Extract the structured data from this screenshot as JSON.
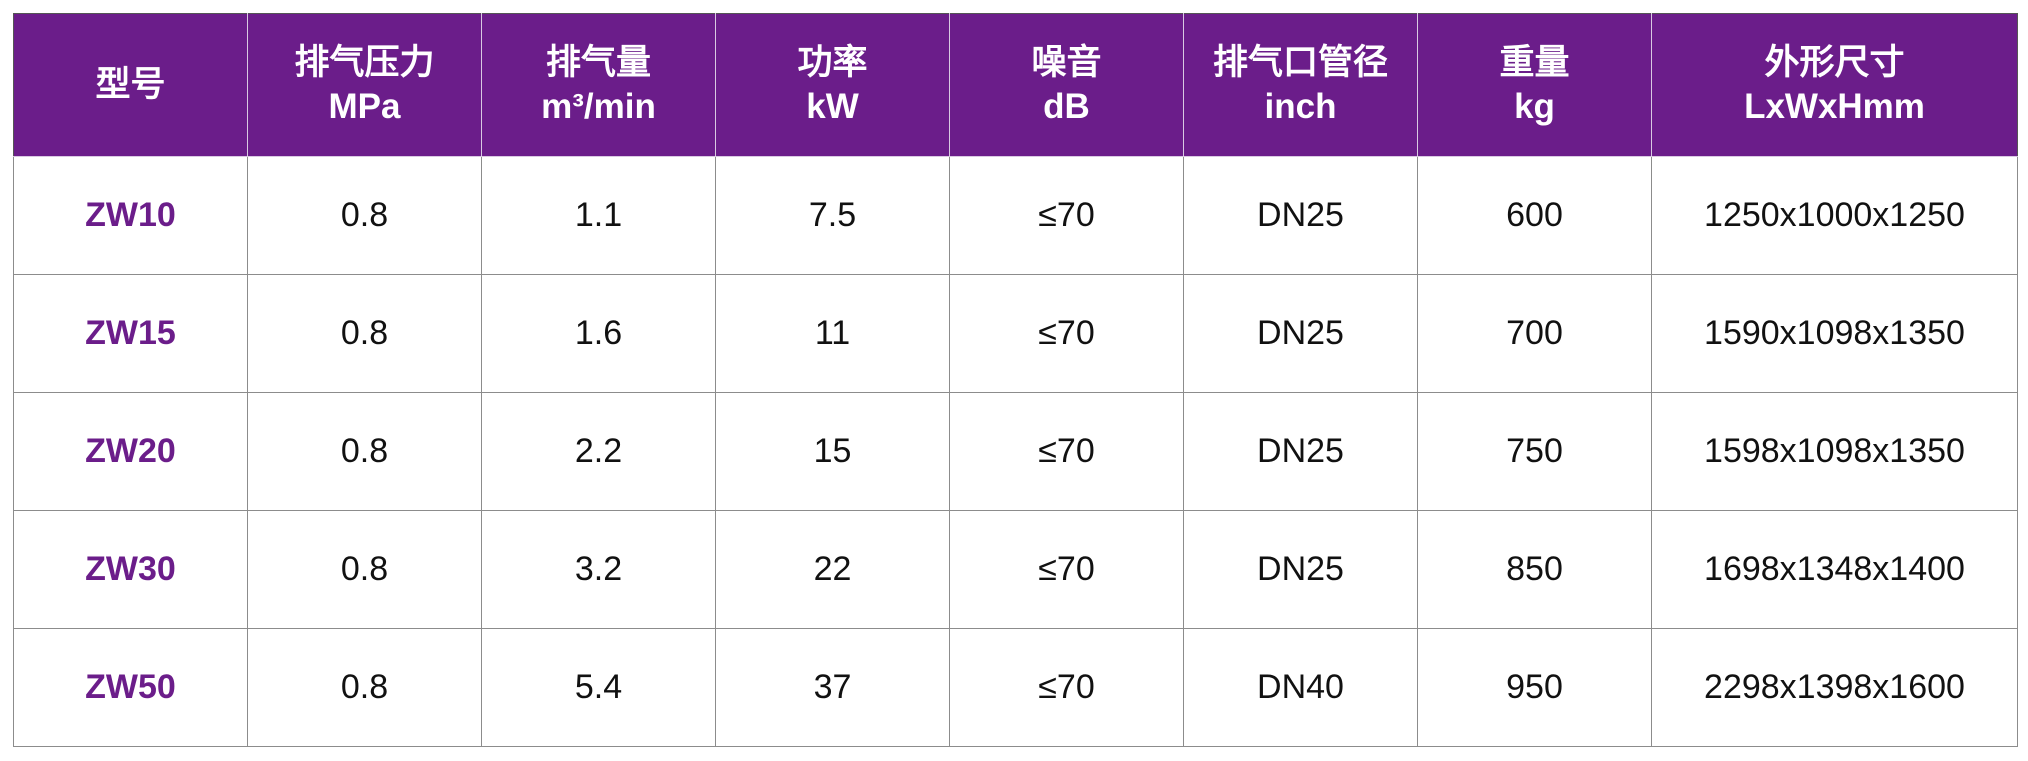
{
  "table": {
    "columns": [
      {
        "name": "型号"
      },
      {
        "name": "排气压力",
        "unit": "MPa"
      },
      {
        "name": "排气量",
        "unit": "m³/min"
      },
      {
        "name": "功率",
        "unit": "kW"
      },
      {
        "name": "噪音",
        "unit": "dB"
      },
      {
        "name": "排气口管径",
        "unit": "inch"
      },
      {
        "name": "重量",
        "unit": "kg"
      },
      {
        "name": "外形尺寸",
        "unit": "LxWxHmm"
      }
    ],
    "rows": [
      [
        "ZW10",
        "0.8",
        "1.1",
        "7.5",
        "≤70",
        "DN25",
        "600",
        "1250x1000x1250"
      ],
      [
        "ZW15",
        "0.8",
        "1.6",
        "11",
        "≤70",
        "DN25",
        "700",
        "1590x1098x1350"
      ],
      [
        "ZW20",
        "0.8",
        "2.2",
        "15",
        "≤70",
        "DN25",
        "750",
        "1598x1098x1350"
      ],
      [
        "ZW30",
        "0.8",
        "3.2",
        "22",
        "≤70",
        "DN25",
        "850",
        "1698x1348x1400"
      ],
      [
        "ZW50",
        "0.8",
        "5.4",
        "37",
        "≤70",
        "DN40",
        "950",
        "2298x1398x1600"
      ]
    ]
  }
}
